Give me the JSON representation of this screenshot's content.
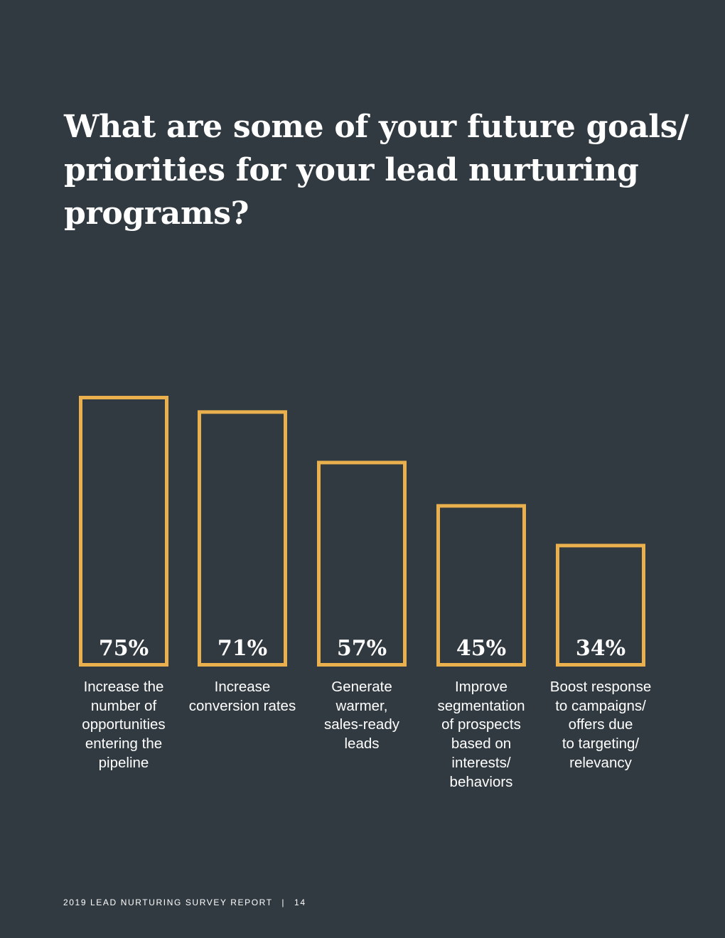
{
  "chart_data": {
    "type": "bar",
    "title_lines": [
      "What are some of your future goals/",
      "priorities for your lead nurturing",
      "programs?"
    ],
    "category_lines": [
      [
        "Increase the",
        "number of",
        "opportunities",
        "entering the",
        "pipeline"
      ],
      [
        "Increase",
        "conversion rates"
      ],
      [
        "Generate",
        "warmer,",
        "sales-ready",
        "leads"
      ],
      [
        "Improve",
        "segmentation",
        "of prospects",
        "based on",
        "interests/",
        "behaviors"
      ],
      [
        "Boost response",
        "to campaigns/",
        "offers due",
        "to targeting/",
        "relevancy"
      ]
    ],
    "values": [
      75,
      71,
      57,
      45,
      34
    ],
    "value_labels": [
      "75%",
      "71%",
      "57%",
      "45%",
      "34%"
    ],
    "ylim": [
      0,
      100
    ],
    "xlabel": "",
    "ylabel": "",
    "grid": false,
    "legend": "none"
  },
  "colors": {
    "background": "#313a41",
    "bar_outline": "#e9b04d",
    "text": "#ffffff"
  },
  "footer": {
    "report": "2019 LEAD NURTURING SURVEY REPORT",
    "separator": "|",
    "page": "14"
  }
}
